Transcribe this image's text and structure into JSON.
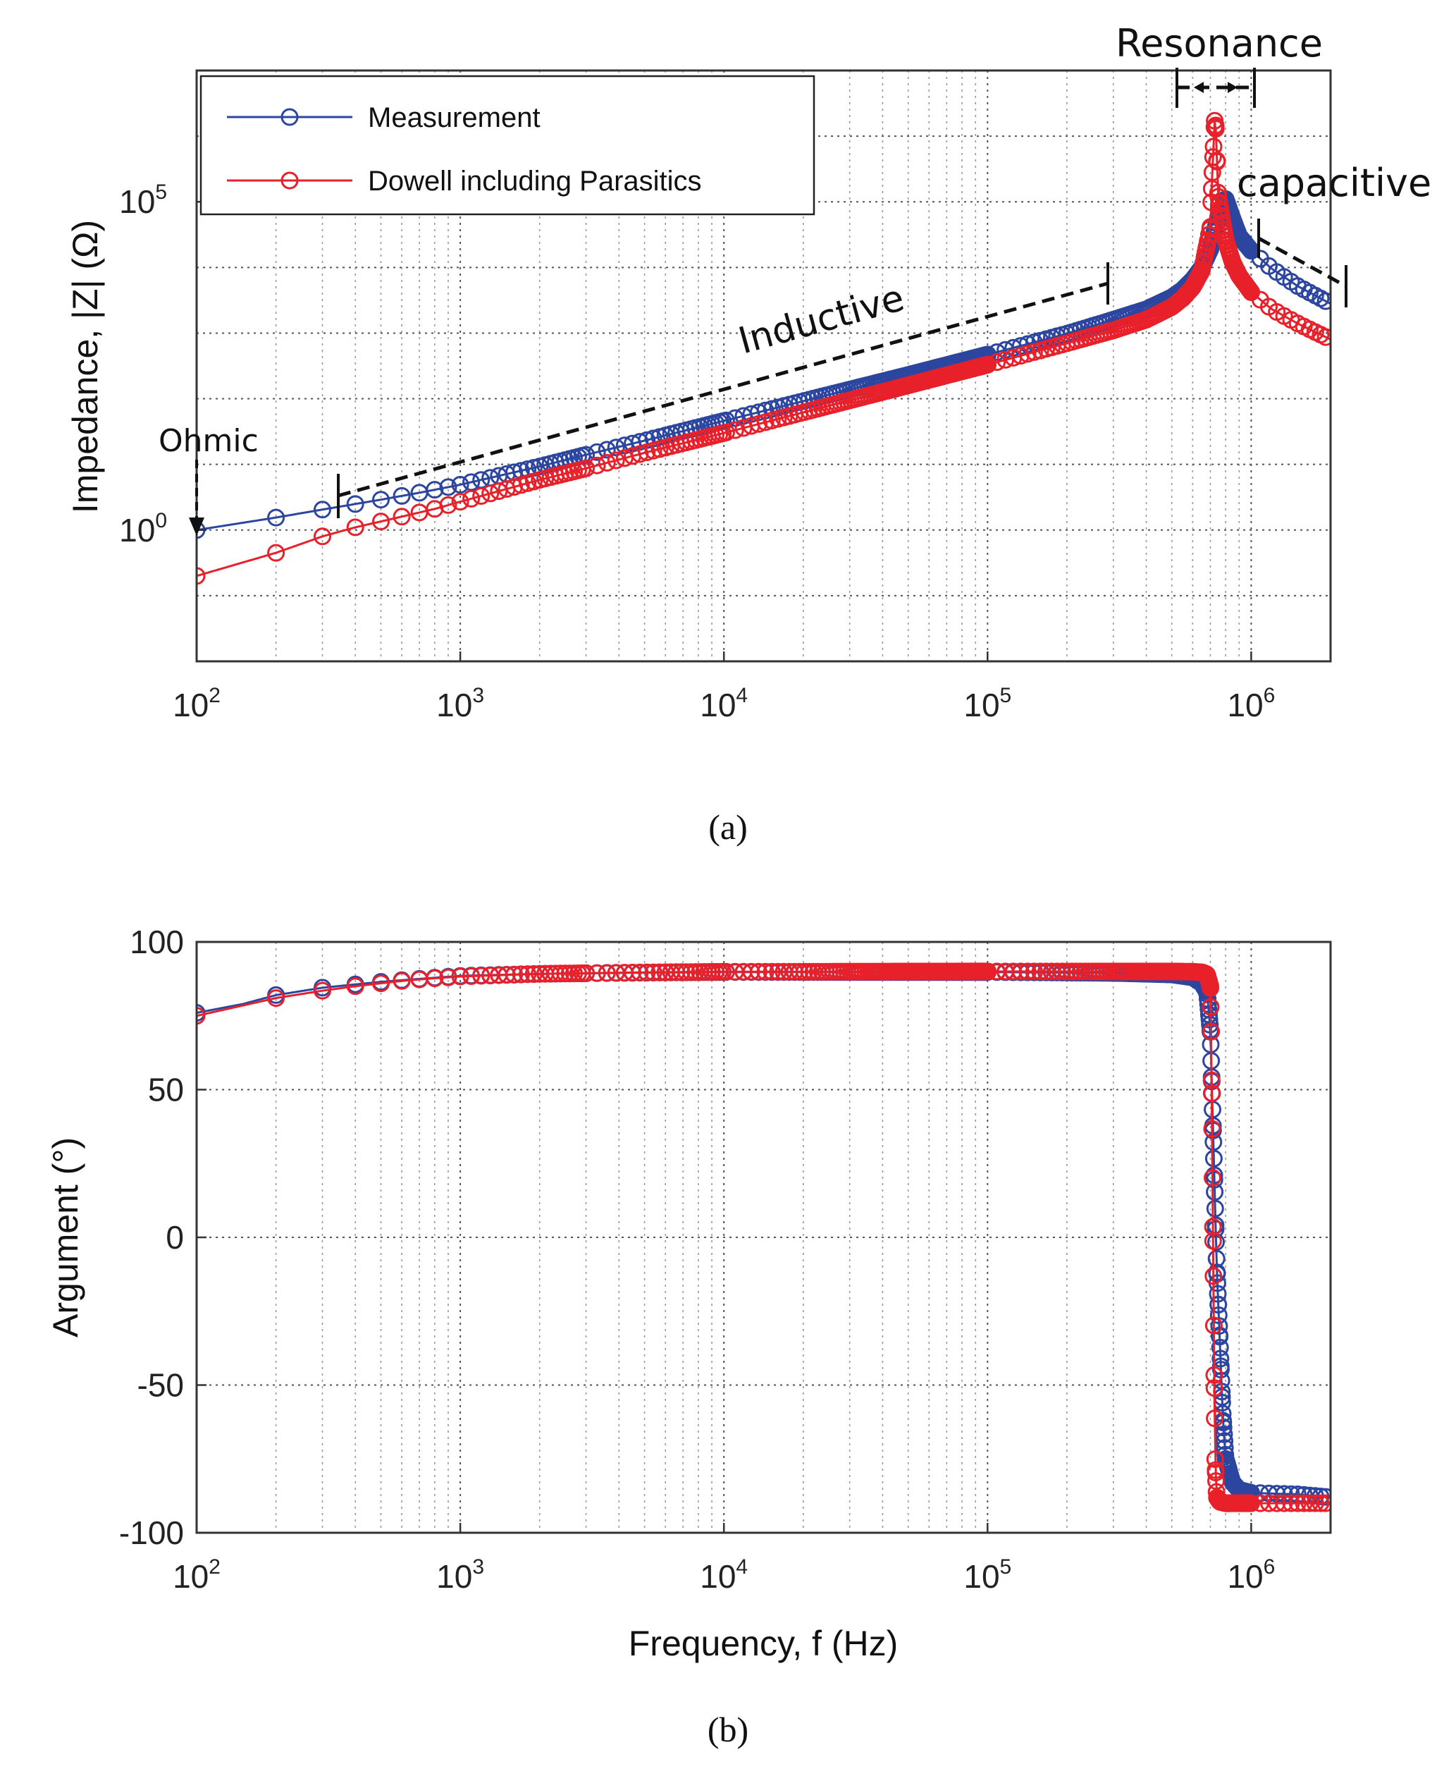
{
  "chart_data": [
    {
      "type": "line",
      "panel": "a",
      "caption": "(a)",
      "title": "",
      "xlabel": "",
      "ylabel": "Impedance, |Z| (Ω)",
      "xscale": "log",
      "yscale": "log",
      "xlim": [
        100,
        2000000
      ],
      "ylim": [
        0.01,
        10000000
      ],
      "x_ticks": [
        "10^2",
        "10^3",
        "10^4",
        "10^5",
        "10^6"
      ],
      "y_ticks": [
        "10^0",
        "10^5"
      ],
      "grid": true,
      "legend_position": "top-left",
      "series": [
        {
          "name": "Measurement",
          "color": "#2c46a0",
          "x": [
            100,
            200,
            300,
            500,
            700,
            1000,
            2000,
            3000,
            5000,
            10000,
            20000,
            50000,
            100000,
            200000,
            300000,
            400000,
            500000,
            550000,
            600000,
            650000,
            700000,
            750000,
            800000,
            850000,
            900000,
            1000000,
            1200000,
            1500000,
            2000000
          ],
          "y": [
            1.0,
            1.55,
            2.05,
            2.9,
            3.7,
            4.9,
            9.3,
            14,
            23,
            46,
            92,
            230,
            470,
            980,
            1600,
            2300,
            3500,
            4600,
            6500,
            10000,
            19000,
            60000,
            110000,
            55000,
            30000,
            18000,
            9500,
            5200,
            2800
          ]
        },
        {
          "name": "Dowell including Parasitics",
          "color": "#e8202a",
          "x": [
            100,
            200,
            300,
            400,
            500,
            600,
            700,
            800,
            1000,
            2000,
            3000,
            5000,
            10000,
            20000,
            50000,
            100000,
            200000,
            300000,
            400000,
            500000,
            550000,
            600000,
            650000,
            700000,
            710000,
            730000,
            750000,
            800000,
            850000,
            900000,
            1000000,
            1200000,
            1500000,
            2000000
          ],
          "y": [
            0.2,
            0.45,
            0.8,
            1.1,
            1.35,
            1.6,
            1.85,
            2.1,
            2.7,
            5.8,
            8.7,
            15,
            30,
            62,
            160,
            330,
            700,
            1100,
            1600,
            2500,
            3400,
            5000,
            9000,
            40000,
            200000,
            2500000,
            120000,
            26000,
            12000,
            7500,
            4200,
            2300,
            1400,
            800
          ]
        }
      ],
      "annotations": [
        "Ohmic",
        "Inductive",
        "Resonance",
        "capacitive"
      ]
    },
    {
      "type": "line",
      "panel": "b",
      "caption": "(b)",
      "title": "",
      "xlabel": "Frequency, f (Hz)",
      "ylabel": "Argument (°)",
      "xscale": "log",
      "yscale": "linear",
      "xlim": [
        100,
        2000000
      ],
      "ylim": [
        -100,
        100
      ],
      "x_ticks": [
        "10^2",
        "10^3",
        "10^4",
        "10^5",
        "10^6"
      ],
      "y_ticks": [
        "100",
        "50",
        "0",
        "-50",
        "-100"
      ],
      "grid": true,
      "series": [
        {
          "name": "Measurement",
          "color": "#2c46a0",
          "x": [
            100,
            150,
            200,
            300,
            500,
            700,
            1000,
            2000,
            5000,
            10000,
            100000,
            300000,
            500000,
            600000,
            650000,
            680000,
            700000,
            720000,
            740000,
            760000,
            780000,
            800000,
            850000,
            900000,
            1000000,
            1500000,
            2000000
          ],
          "y": [
            76,
            79,
            82,
            84.5,
            86.5,
            87.5,
            88.5,
            89.2,
            89.6,
            89.8,
            89.8,
            89.5,
            89.0,
            88.0,
            86.0,
            83.0,
            70.0,
            30.0,
            -10.0,
            -35.0,
            -60.0,
            -75.0,
            -83.0,
            -85.5,
            -86.5,
            -87.0,
            -88.0
          ]
        },
        {
          "name": "Dowell including Parasitics",
          "color": "#e8202a",
          "x": [
            100,
            200,
            300,
            400,
            500,
            600,
            700,
            800,
            1000,
            2000,
            5000,
            10000,
            100000,
            300000,
            500000,
            600000,
            650000,
            680000,
            700000,
            705000,
            710000,
            715000,
            720000,
            725000,
            730000,
            740000,
            760000,
            800000,
            1000000,
            2000000
          ],
          "y": [
            75,
            81,
            83.5,
            85,
            86,
            86.8,
            87.3,
            87.7,
            88.3,
            89.2,
            89.7,
            89.9,
            90,
            90,
            90,
            89.9,
            89.7,
            89.0,
            85,
            70,
            40,
            10,
            -20,
            -50,
            -75,
            -88,
            -89.5,
            -90,
            -90,
            -90
          ]
        }
      ]
    }
  ]
}
